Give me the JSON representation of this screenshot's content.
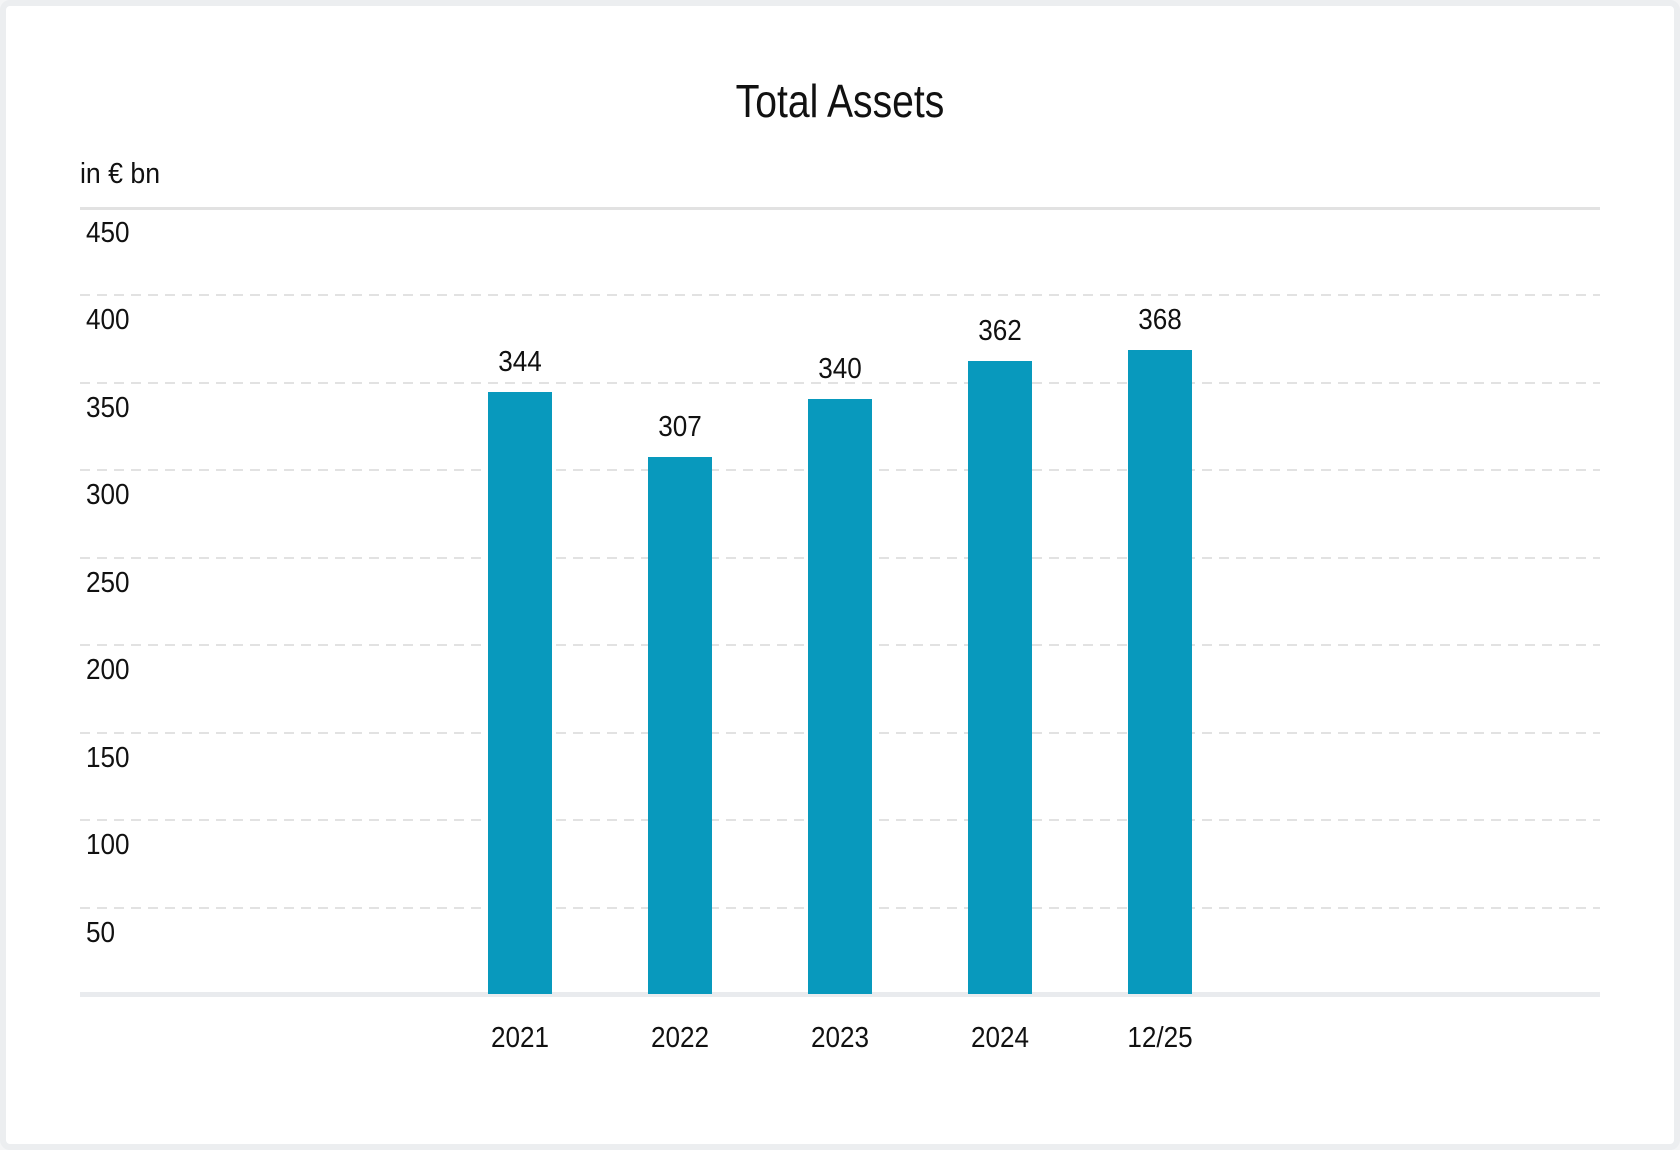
{
  "page": {
    "background": "#ffffff",
    "border_color": "#eceef0"
  },
  "chart_data": {
    "type": "bar",
    "title": "Total Assets",
    "unit_label": "in € bn",
    "categories": [
      "2021",
      "2022",
      "2023",
      "2024",
      "12/25"
    ],
    "values": [
      344,
      307,
      340,
      362,
      368
    ],
    "value_labels": "above-bars",
    "xlabel": "",
    "ylabel": "in € bn",
    "ylim": [
      0,
      450
    ],
    "yticks": [
      50,
      100,
      150,
      200,
      250,
      300,
      350,
      400,
      450
    ],
    "grid": "horizontal-dashed",
    "legend": "none",
    "bar_color": "#0899bd",
    "gridline_color": "#e2e2e2",
    "axis_line_color": "#e9ebee",
    "text_color": "#111111"
  }
}
